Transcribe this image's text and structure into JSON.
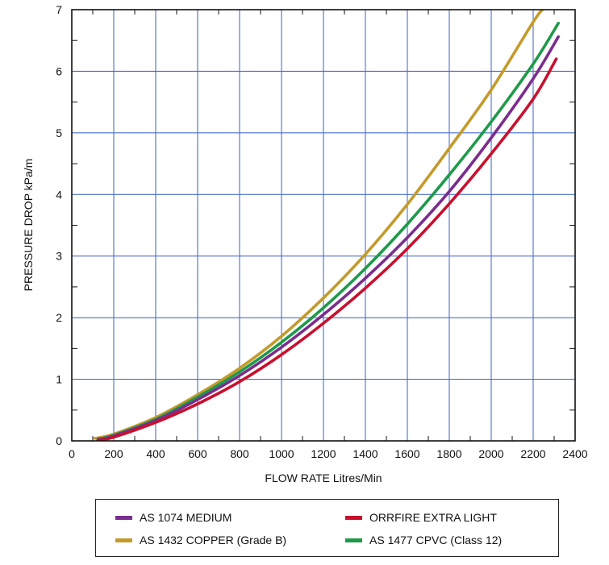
{
  "chart_data": {
    "type": "line",
    "xlabel": "FLOW RATE Litres/Min",
    "ylabel": "PRESSURE DROP kPa/m",
    "xlim": [
      0,
      2400
    ],
    "ylim": [
      0,
      7
    ],
    "x_ticks": [
      "0",
      "200",
      "400",
      "600",
      "800",
      "1000",
      "1200",
      "1400",
      "1600",
      "1800",
      "2000",
      "2200",
      "2400"
    ],
    "y_ticks": [
      "0",
      "1",
      "2",
      "3",
      "4",
      "5",
      "6",
      "7"
    ],
    "grid": true,
    "legend_position": "bottom",
    "series": [
      {
        "name": "AS 1074 MEDIUM",
        "color": "#7b2d8e",
        "x": [
          125,
          200,
          400,
          600,
          800,
          1000,
          1200,
          1400,
          1600,
          1800,
          2000,
          2200,
          2320
        ],
        "y": [
          0.02,
          0.08,
          0.33,
          0.67,
          1.06,
          1.52,
          2.05,
          2.64,
          3.3,
          4.05,
          4.92,
          5.88,
          6.56
        ]
      },
      {
        "name": "ORRFIRE EXTRA LIGHT",
        "color": "#c8102e",
        "x": [
          125,
          200,
          400,
          600,
          800,
          1000,
          1200,
          1400,
          1600,
          1800,
          2000,
          2200,
          2310
        ],
        "y": [
          0.01,
          0.06,
          0.3,
          0.6,
          0.96,
          1.4,
          1.91,
          2.48,
          3.12,
          3.85,
          4.66,
          5.55,
          6.2
        ]
      },
      {
        "name": "AS 1432 COPPER (Grade B)",
        "color": "#c49a2a",
        "x": [
          110,
          200,
          400,
          600,
          800,
          1000,
          1200,
          1400,
          1600,
          1800,
          2000,
          2200,
          2250
        ],
        "y": [
          0.04,
          0.11,
          0.38,
          0.75,
          1.18,
          1.7,
          2.32,
          3.03,
          3.84,
          4.75,
          5.7,
          6.8,
          7.02
        ]
      },
      {
        "name": "AS 1477 CPVC (Class 12)",
        "color": "#1e9a4a",
        "x": [
          125,
          200,
          400,
          600,
          800,
          1000,
          1200,
          1400,
          1600,
          1800,
          2000,
          2200,
          2320
        ],
        "y": [
          0.03,
          0.09,
          0.35,
          0.71,
          1.12,
          1.6,
          2.16,
          2.8,
          3.52,
          4.32,
          5.18,
          6.12,
          6.78
        ]
      }
    ]
  }
}
